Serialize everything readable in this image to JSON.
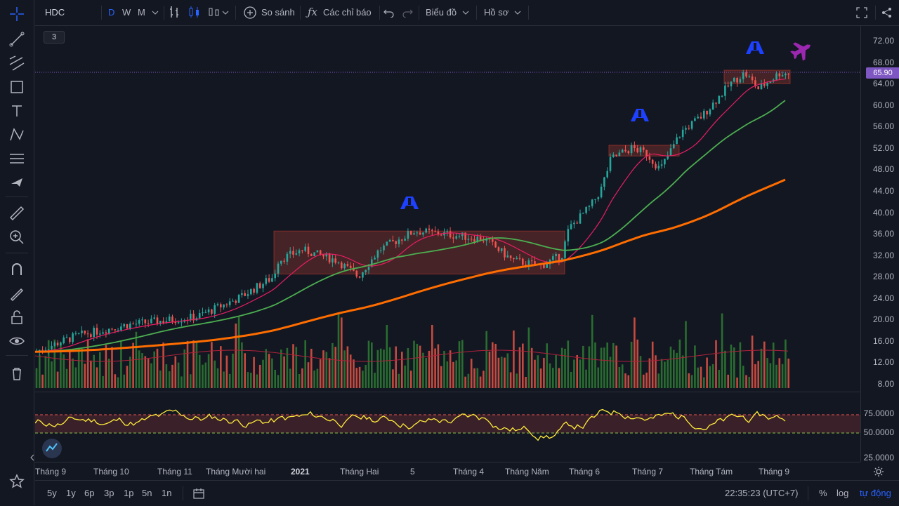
{
  "toolbar": {
    "symbol": "HDC",
    "intervals": [
      "D",
      "W",
      "M"
    ],
    "compare": "So sánh",
    "indicators": "Các chỉ báo",
    "chart_menu": "Biểu đồ",
    "profile_menu": "Hồ sơ"
  },
  "legend_count": "3",
  "price_axis": [
    "72.00",
    "68.00",
    "64.00",
    "60.00",
    "56.00",
    "52.00",
    "48.00",
    "44.00",
    "40.00",
    "36.00",
    "32.00",
    "28.00",
    "24.00",
    "20.00",
    "16.00",
    "12.00",
    "8.00"
  ],
  "last_price": "65.90",
  "osc_axis": [
    "75.0000",
    "50.0000",
    "25.0000"
  ],
  "time_axis": [
    "Tháng 9",
    "Tháng 10",
    "Tháng 11",
    "Tháng Mười hai",
    "2021",
    "Tháng Hai",
    "5",
    "Tháng 4",
    "Tháng Năm",
    "Tháng 6",
    "Tháng 7",
    "Tháng Tám",
    "Tháng 9"
  ],
  "ranges": [
    "5y",
    "1y",
    "6p",
    "3p",
    "1p",
    "5n",
    "1n"
  ],
  "clock": "22:35:23 (UTC+7)",
  "bottom_right": {
    "percent": "%",
    "log": "log",
    "auto": "tự động"
  },
  "colors": {
    "accent": "#2962ff",
    "up": "#26a69a",
    "down": "#ef5350",
    "ma_pink": "#e91e63",
    "ma_green": "#4caf50",
    "ma_orange": "#ff6d00",
    "osc": "#ffeb3b",
    "price_tag": "#7e57c2"
  },
  "chart_data": {
    "type": "candlestick",
    "ylim": [
      8,
      72
    ],
    "consolidation_boxes": [
      {
        "from": "Tháng Mười hai",
        "to": "Tháng Năm",
        "low": 28.5,
        "high": 36.5
      },
      {
        "from": "Tháng 6",
        "to": "Tháng 7",
        "low": 50.5,
        "high": 52.5
      },
      {
        "from": "Tháng Tám",
        "to": "Tháng 9",
        "low": 64,
        "high": 66.5
      }
    ],
    "oscillator": {
      "ylim": [
        25,
        75
      ],
      "upper": 70,
      "lower": 50
    }
  }
}
